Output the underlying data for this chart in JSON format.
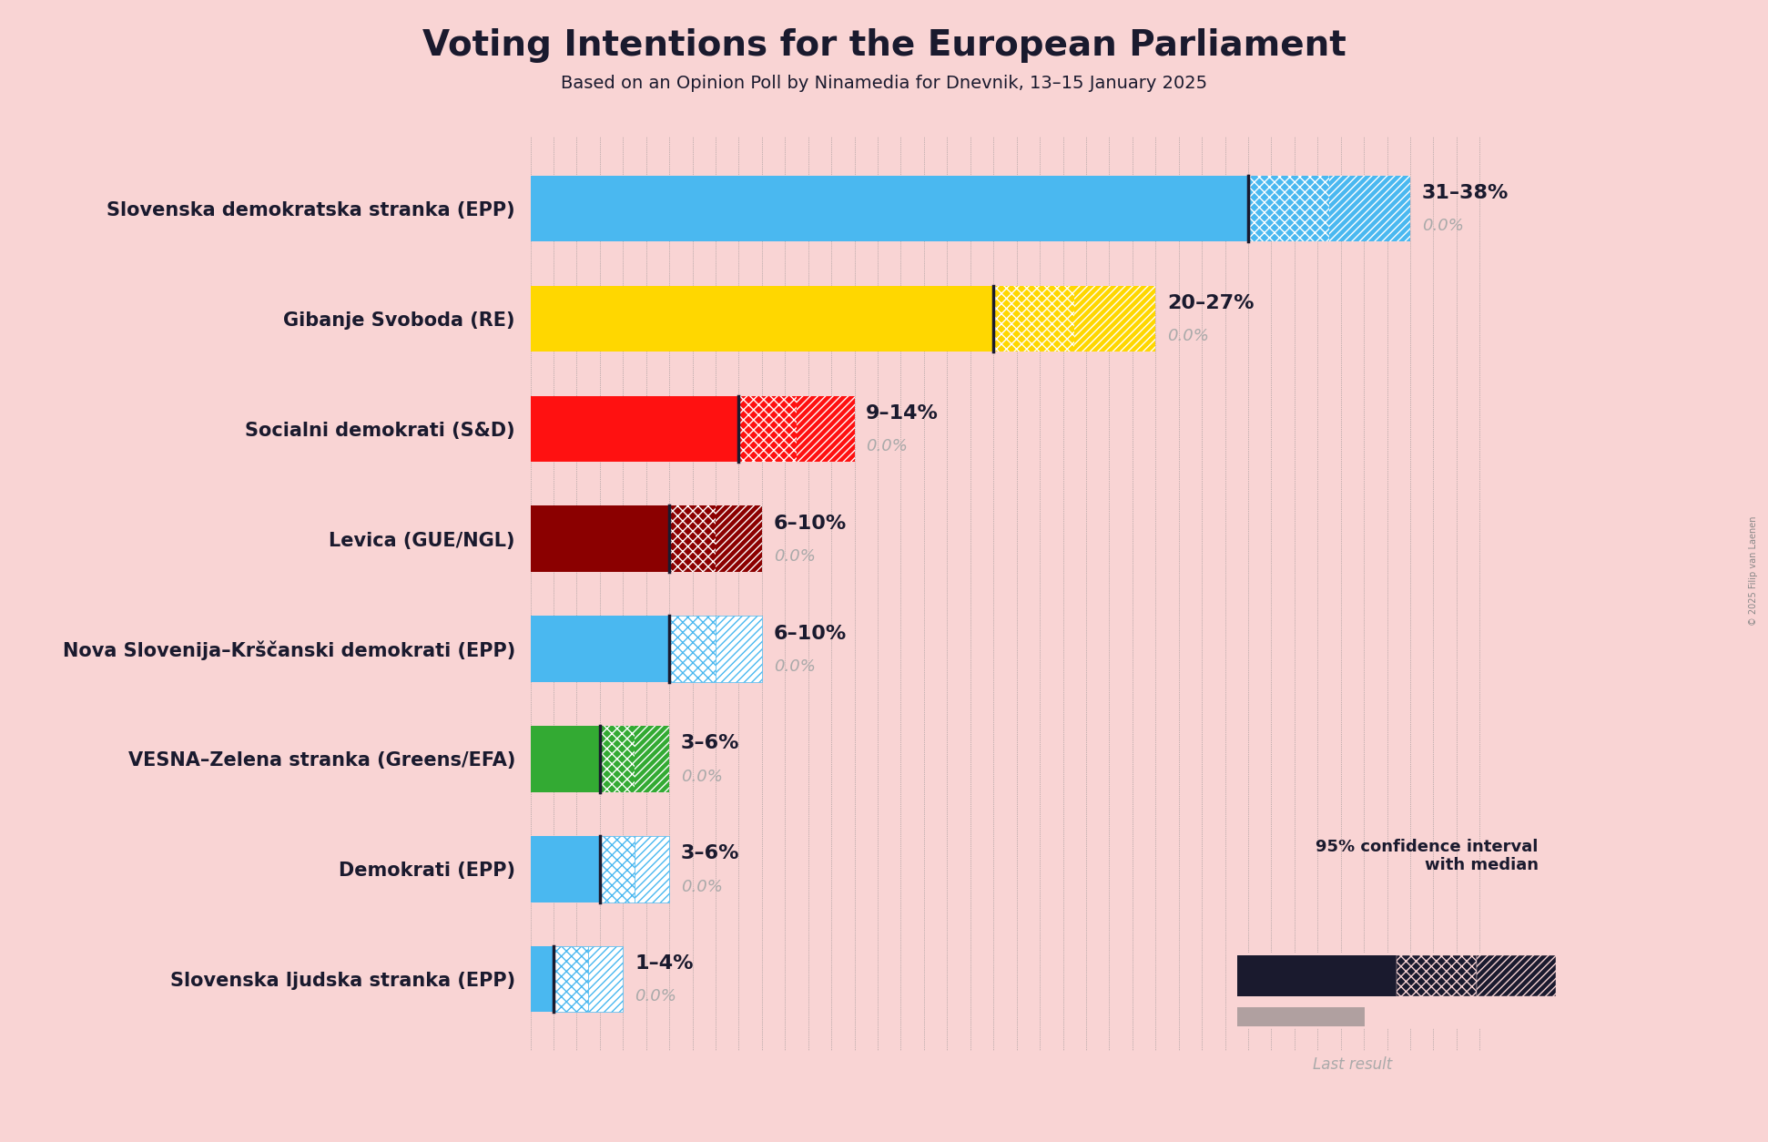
{
  "title": "Voting Intentions for the European Parliament",
  "subtitle": "Based on an Opinion Poll by Ninamedia for Dnevnik, 13–15 January 2025",
  "copyright": "© 2025 Filip van Laenen",
  "background_color": "#f9d4d4",
  "parties": [
    {
      "name": "Slovenska demokratska stranka (EPP)",
      "low": 31,
      "high": 38,
      "median": 31,
      "last": 0.0,
      "color": "#4ab8f0",
      "light": false
    },
    {
      "name": "Gibanje Svoboda (RE)",
      "low": 20,
      "high": 27,
      "median": 20,
      "last": 0.0,
      "color": "#FFD700",
      "light": false
    },
    {
      "name": "Socialni demokrati (S&D)",
      "low": 9,
      "high": 14,
      "median": 9,
      "last": 0.0,
      "color": "#FF1111",
      "light": false
    },
    {
      "name": "Levica (GUE/NGL)",
      "low": 6,
      "high": 10,
      "median": 6,
      "last": 0.0,
      "color": "#8B0000",
      "light": false
    },
    {
      "name": "Nova Slovenija–Krščanski demokrati (EPP)",
      "low": 6,
      "high": 10,
      "median": 6,
      "last": 0.0,
      "color": "#4ab8f0",
      "light": true
    },
    {
      "name": "VESNA–Zelena stranka (Greens/EFA)",
      "low": 3,
      "high": 6,
      "median": 3,
      "last": 0.0,
      "color": "#33AA33",
      "light": false
    },
    {
      "name": "Demokrati (EPP)",
      "low": 3,
      "high": 6,
      "median": 3,
      "last": 0.0,
      "color": "#4ab8f0",
      "light": true
    },
    {
      "name": "Slovenska ljudska stranka (EPP)",
      "low": 1,
      "high": 4,
      "median": 1,
      "last": 0.0,
      "color": "#4ab8f0",
      "light": true
    }
  ],
  "xlim_max": 42,
  "bar_height": 0.6,
  "label_color_range": "#1a1a2e",
  "label_color_last": "#aaaaaa",
  "legend_text": "95% confidence interval\nwith median",
  "legend_last_text": "Last result",
  "legend_navy": "#1a1a2e",
  "grid_color": "#888888",
  "title_fontsize": 28,
  "subtitle_fontsize": 14,
  "ylabel_fontsize": 15,
  "label_fontsize": 16,
  "last_fontsize": 13
}
